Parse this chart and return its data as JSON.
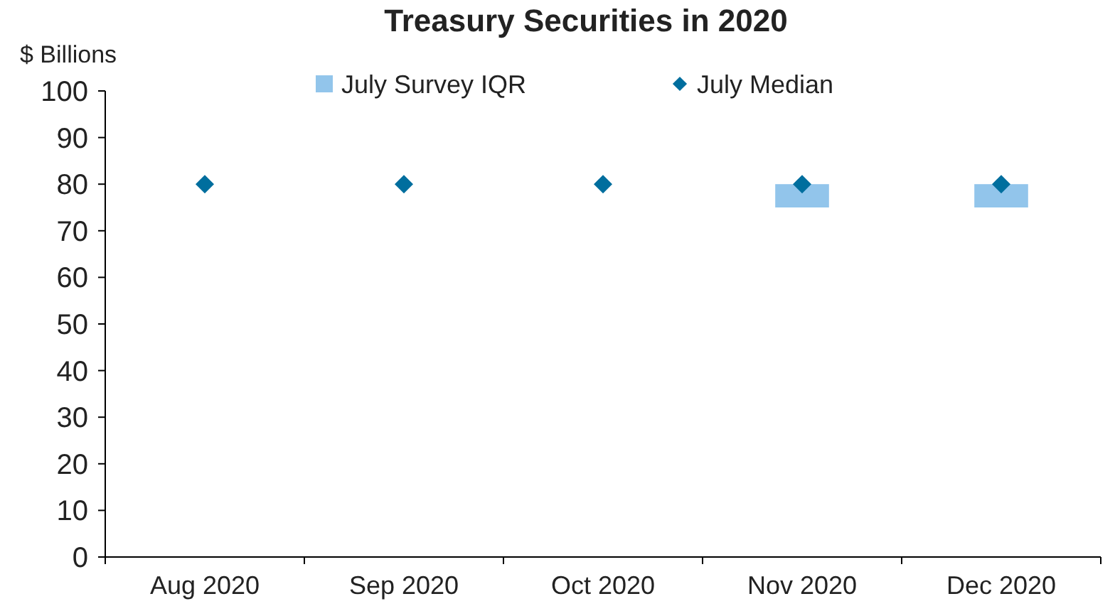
{
  "chart_data": {
    "type": "bar",
    "title": "Treasury Securities in 2020",
    "ylabel": "$ Billions",
    "categories": [
      "Aug 2020",
      "Sep 2020",
      "Oct 2020",
      "Nov 2020",
      "Dec 2020"
    ],
    "series": [
      {
        "name": "July Survey IQR",
        "color": "#92c5eb",
        "values": [
          null,
          null,
          null,
          5,
          5
        ],
        "base": [
          null,
          null,
          null,
          75,
          75
        ]
      },
      {
        "name": "July Median",
        "type": "scatter",
        "color": "#006e9e",
        "marker": "diamond",
        "values": [
          80,
          80,
          80,
          80,
          80
        ]
      }
    ],
    "ylim": [
      0,
      100
    ],
    "yticks": [
      0,
      10,
      20,
      30,
      40,
      50,
      60,
      70,
      80,
      90,
      100
    ],
    "grid": false,
    "legend": "top"
  }
}
